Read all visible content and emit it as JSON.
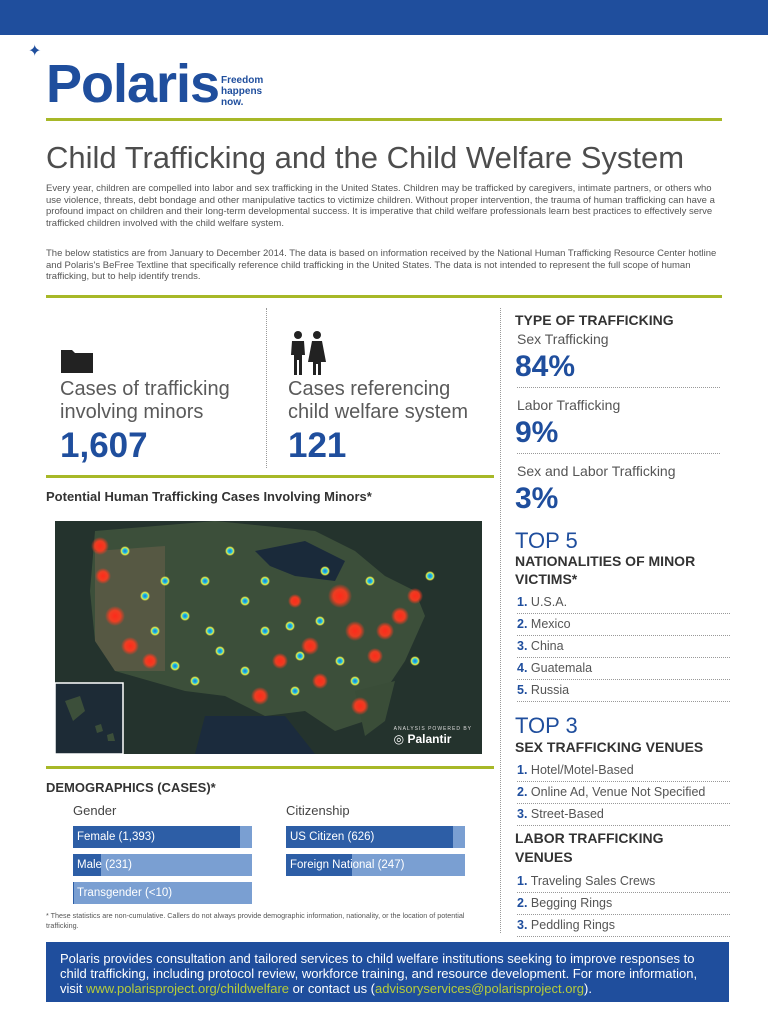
{
  "brand": {
    "name": "Polaris",
    "tagline_1": "Freedom",
    "tagline_2": "happens",
    "tagline_3": "now."
  },
  "title": "Child Trafficking and the Child Welfare System",
  "intro_paragraph_1": "Every year, children are compelled into labor and sex trafficking in the United States. Children may be trafficked by caregivers, intimate partners, or others who use violence, threats, debt bondage and other manipulative tactics to victimize children. Without proper intervention, the trauma of human trafficking can have a profound impact on children and their long-term developmental success. It is imperative that child welfare professionals learn best practices to effectively serve trafficked children involved with the child welfare system.",
  "intro_paragraph_2": "The below statistics are from January to December 2014. The data is based on information received by the National Human Trafficking Resource Center hotline and Polaris's BeFree Textline that specifically reference child trafficking in the United States. The data is not intended to represent the full scope of human trafficking, but to help identify trends.",
  "stats": {
    "minors_label_1": "Cases of trafficking",
    "minors_label_2": "involving minors",
    "minors_value": "1,607",
    "welfare_label_1": "Cases referencing",
    "welfare_label_2": "child welfare system",
    "welfare_value": "121"
  },
  "map": {
    "heading": "Potential Human Trafficking Cases Involving Minors*",
    "credit_small": "ANALYSIS POWERED BY",
    "credit_big": "Palantir"
  },
  "demographics": {
    "heading": "DEMOGRAPHICS (CASES)*",
    "gender_title": "Gender",
    "citizenship_title": "Citizenship",
    "gender": [
      {
        "label": "Female (1,393)",
        "value": 1393
      },
      {
        "label": "Male (231)",
        "value": 231
      },
      {
        "label": "Transgender (<10)",
        "value": 10
      }
    ],
    "citizenship": [
      {
        "label": "US Citizen (626)",
        "value": 626
      },
      {
        "label": "Foreign National (247)",
        "value": 247
      }
    ],
    "footnote": "* These statistics are non-cumulative. Callers do not always provide demographic information, nationality, or the location of potential trafficking."
  },
  "type_of_trafficking": {
    "heading": "TYPE OF TRAFFICKING",
    "items": [
      {
        "label": "Sex Trafficking",
        "value": "84%"
      },
      {
        "label": "Labor Trafficking",
        "value": "9%"
      },
      {
        "label": "Sex and Labor Trafficking",
        "value": "3%"
      }
    ]
  },
  "nationalities": {
    "top": "TOP 5",
    "heading_1": "NATIONALITIES OF MINOR",
    "heading_2": "VICTIMS*",
    "items": [
      {
        "n": "1.",
        "label": "U.S.A."
      },
      {
        "n": "2.",
        "label": "Mexico"
      },
      {
        "n": "3.",
        "label": "China"
      },
      {
        "n": "4.",
        "label": "Guatemala"
      },
      {
        "n": "5.",
        "label": "Russia"
      }
    ]
  },
  "sex_venues": {
    "top": "TOP 3",
    "heading": "SEX TRAFFICKING VENUES",
    "items": [
      {
        "n": "1.",
        "label": "Hotel/Motel-Based"
      },
      {
        "n": "2.",
        "label": "Online Ad, Venue Not Specified"
      },
      {
        "n": "3.",
        "label": "Street-Based"
      }
    ]
  },
  "labor_venues": {
    "heading_1": "LABOR TRAFFICKING",
    "heading_2": "VENUES",
    "items": [
      {
        "n": "1.",
        "label": "Traveling Sales Crews"
      },
      {
        "n": "2.",
        "label": "Begging Rings"
      },
      {
        "n": "3.",
        "label": "Peddling Rings"
      }
    ]
  },
  "footer": {
    "text_1": "Polaris provides consultation and tailored services to child welfare institutions seeking to improve responses to child trafficking, including protocol review, workforce training, and resource development. For more information, visit ",
    "link_1": "www.polarisproject.org/childwelfare",
    "text_2": " or contact us (",
    "link_2": "advisoryservices@polarisproject.org",
    "text_3": ")."
  },
  "colors": {
    "brand_blue": "#1f4e9d",
    "accent_green": "#a7b828",
    "bar_light": "#7a9fd2",
    "map_bg": "#25352e"
  }
}
